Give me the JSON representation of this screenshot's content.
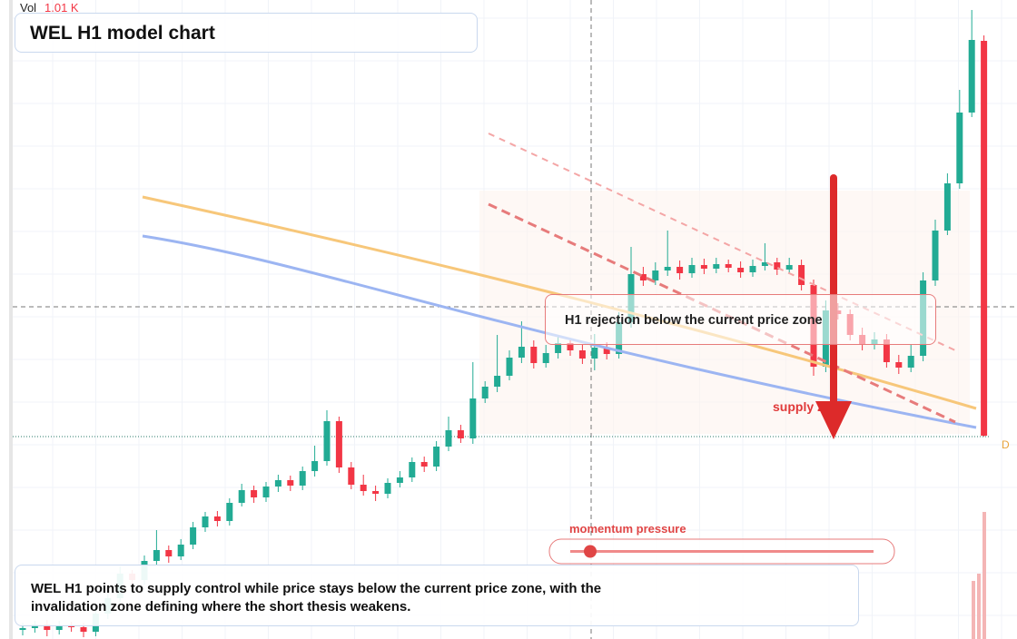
{
  "chart_data": {
    "type": "candlestick",
    "title": "WEL H1 model chart",
    "volume_label": "Vol",
    "volume_value_label": "1.01 K",
    "annotation": "H1 rejection below the current price zone",
    "zone_label": "supply zone",
    "momentum_label": "momentum pressure",
    "caption": "WEL H1 points to supply control while price stays below the current price zone, with the invalidation zone defining where the short thesis weakens.",
    "price_marker": "D",
    "up_color": "#22ab94",
    "down_color": "#f23645",
    "ylim": [
      0,
      70.4
    ],
    "open": [
      1.0,
      1.2,
      1.6,
      1.0,
      1.5,
      1.3,
      0.8,
      2.8,
      4.5,
      7.2,
      6.5,
      8.6,
      9.8,
      9.1,
      10.4,
      12.3,
      13.5,
      13.0,
      15.0,
      16.4,
      15.6,
      16.8,
      17.5,
      16.9,
      18.5,
      19.6,
      24.0,
      18.9,
      17.0,
      16.3,
      16.0,
      17.2,
      17.8,
      19.5,
      19.0,
      21.2,
      23.0,
      22.1,
      26.5,
      27.8,
      29.0,
      31.0,
      32.2,
      30.4,
      31.5,
      32.6,
      31.8,
      30.9,
      32.1,
      31.4,
      34.9,
      40.2,
      39.5,
      40.6,
      41.0,
      40.3,
      41.2,
      40.8,
      41.3,
      40.9,
      40.4,
      41.1,
      41.5,
      40.7,
      41.2,
      39.0,
      30.0,
      36.2,
      35.8,
      33.5,
      32.4,
      33.0,
      30.5,
      29.9,
      31.2,
      39.5,
      45.0,
      50.2,
      58.0,
      65.9
    ],
    "high": [
      1.8,
      2.0,
      2.1,
      2.0,
      1.9,
      1.8,
      3.5,
      5.0,
      8.0,
      7.6,
      9.2,
      12.0,
      10.3,
      11.0,
      12.9,
      14.0,
      14.1,
      15.5,
      17.1,
      16.9,
      17.3,
      18.1,
      18.0,
      19.0,
      21.3,
      25.2,
      24.5,
      19.5,
      18.1,
      16.9,
      17.7,
      18.5,
      20.0,
      20.1,
      21.8,
      24.5,
      23.6,
      30.5,
      28.4,
      33.5,
      31.8,
      35.0,
      32.9,
      32.4,
      33.5,
      33.1,
      32.4,
      33.6,
      32.7,
      36.0,
      43.2,
      41.0,
      41.5,
      45.0,
      41.7,
      42.0,
      41.9,
      42.0,
      41.8,
      41.6,
      41.8,
      43.6,
      42.0,
      42.0,
      41.8,
      39.6,
      37.3,
      37.0,
      36.3,
      34.3,
      33.8,
      33.6,
      31.3,
      32.4,
      40.4,
      46.2,
      51.3,
      60.5,
      69.3,
      66.5
    ],
    "low": [
      0.4,
      0.7,
      0.3,
      0.5,
      0.8,
      0.2,
      0.3,
      2.2,
      4.0,
      5.9,
      6.0,
      8.1,
      8.4,
      8.7,
      9.9,
      11.8,
      12.4,
      12.5,
      14.6,
      15.0,
      15.1,
      16.2,
      16.3,
      16.4,
      17.9,
      19.1,
      18.3,
      16.5,
      15.8,
      15.2,
      15.5,
      16.7,
      17.3,
      18.4,
      18.5,
      20.7,
      21.6,
      21.5,
      26.0,
      27.2,
      28.5,
      30.4,
      29.8,
      29.9,
      30.9,
      31.2,
      30.3,
      29.6,
      30.8,
      30.9,
      34.3,
      38.9,
      39.0,
      40.0,
      39.6,
      39.8,
      40.2,
      40.3,
      40.4,
      39.8,
      39.9,
      40.6,
      40.1,
      40.2,
      38.4,
      29.0,
      29.4,
      35.2,
      32.9,
      31.8,
      31.9,
      29.9,
      29.2,
      29.4,
      30.6,
      38.9,
      44.5,
      49.6,
      57.5,
      22.3
    ],
    "close": [
      1.2,
      1.6,
      1.0,
      1.5,
      1.3,
      0.8,
      2.8,
      4.5,
      7.2,
      6.5,
      8.6,
      9.8,
      9.1,
      10.4,
      12.3,
      13.5,
      13.0,
      15.0,
      16.4,
      15.6,
      16.8,
      17.5,
      16.9,
      18.5,
      19.6,
      24.0,
      18.9,
      17.0,
      16.3,
      16.0,
      17.2,
      17.8,
      19.5,
      19.0,
      21.2,
      23.0,
      22.1,
      26.5,
      27.8,
      29.0,
      31.0,
      32.2,
      30.4,
      31.5,
      32.6,
      31.8,
      30.9,
      32.1,
      31.4,
      34.9,
      40.2,
      39.5,
      40.6,
      41.0,
      40.3,
      41.2,
      40.8,
      41.3,
      40.9,
      40.4,
      41.1,
      41.5,
      40.7,
      41.2,
      39.0,
      30.0,
      36.2,
      35.8,
      33.5,
      32.4,
      33.0,
      30.5,
      29.9,
      31.2,
      39.5,
      45.0,
      50.2,
      58.0,
      66.0,
      22.4
    ]
  }
}
